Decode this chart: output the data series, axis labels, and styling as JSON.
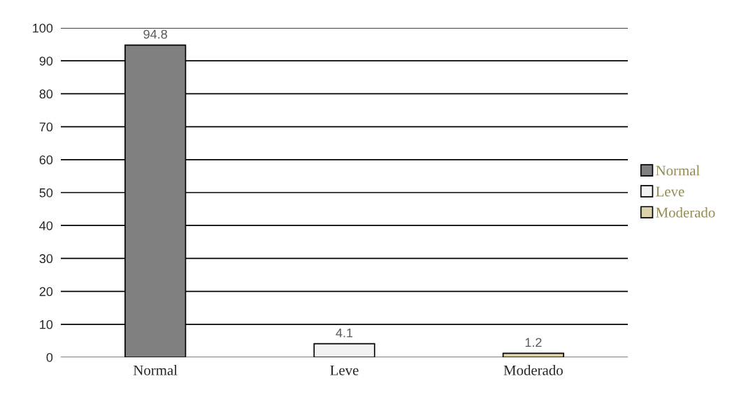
{
  "chart_data": {
    "type": "bar",
    "categories": [
      "Normal",
      "Leve",
      "Moderado"
    ],
    "series": [
      {
        "name": "Normal",
        "color": "#808080",
        "values": [
          94.8,
          null,
          null
        ]
      },
      {
        "name": "Leve",
        "color": "#f2f2f2",
        "values": [
          null,
          4.1,
          null
        ]
      },
      {
        "name": "Moderado",
        "color": "#ddd3a9",
        "values": [
          null,
          null,
          1.2
        ]
      }
    ],
    "ylim": [
      0,
      100
    ],
    "yticks": [
      0,
      10,
      20,
      30,
      40,
      50,
      60,
      70,
      80,
      90,
      100
    ],
    "grid": "y",
    "legend": "right",
    "data_labels": true
  }
}
